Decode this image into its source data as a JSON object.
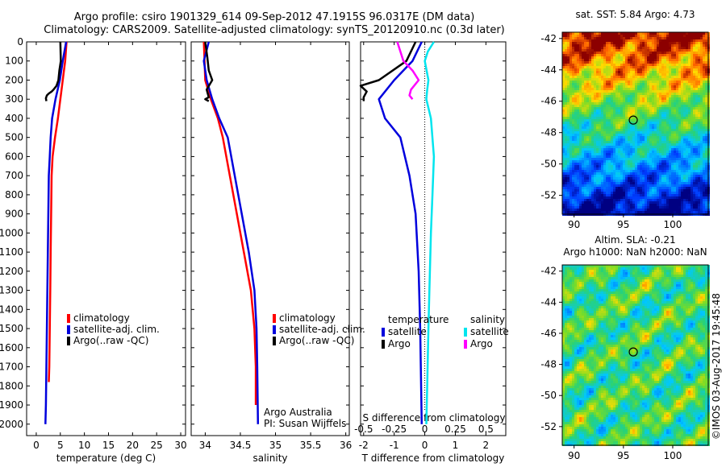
{
  "header": {
    "line1": "Argo profile: csiro 1901329_614 09-Sep-2012 47.1915S 96.0317E (DM data)",
    "line2": "Climatology: CARS2009. Satellite-adjusted climatology: synTS_20120910.nc (0.3d later)"
  },
  "footer": {
    "text": "©IMOS 03-Aug-2017 19:45:48"
  },
  "colors": {
    "climatology": "#ff0000",
    "satellite": "#0000dd",
    "argo": "#000000",
    "sal_sat": "#00e5ee",
    "sal_argo": "#ff00ff"
  },
  "chart_data": [
    {
      "type": "line",
      "ylabel": "",
      "yticks": [
        0,
        100,
        200,
        300,
        400,
        500,
        600,
        700,
        800,
        900,
        1000,
        1100,
        1200,
        1300,
        1400,
        1500,
        1600,
        1700,
        1800,
        1900,
        2000
      ],
      "xlabel": "temperature (deg C)",
      "xticks": [
        0,
        5,
        10,
        15,
        20,
        25,
        30
      ],
      "xlim": [
        -2,
        31
      ],
      "ylim": [
        2060,
        0
      ],
      "legend": [
        "climatology",
        "satellite-adj. clim.",
        "Argo(..raw -QC)"
      ],
      "series": [
        {
          "name": "climatology",
          "color": "#ff0000",
          "x": [
            6.3,
            6.0,
            5.5,
            5.0,
            4.5,
            3.9,
            3.4,
            3.2,
            3.1,
            3.0,
            2.9,
            2.8,
            2.7,
            2.6
          ],
          "y": [
            0,
            100,
            200,
            300,
            400,
            500,
            600,
            700,
            900,
            1100,
            1300,
            1500,
            1700,
            1780
          ]
        },
        {
          "name": "satellite-adj. clim.",
          "color": "#0000dd",
          "x": [
            6.2,
            5.5,
            4.9,
            4.0,
            3.3,
            3.0,
            2.8,
            2.6,
            2.5,
            2.4,
            2.3,
            2.2,
            2.1,
            2.0,
            1.9
          ],
          "y": [
            0,
            100,
            200,
            300,
            400,
            500,
            600,
            700,
            900,
            1100,
            1300,
            1500,
            1700,
            1900,
            2000
          ]
        },
        {
          "name": "Argo(..raw -QC)",
          "color": "#000000",
          "x": [
            5.0,
            5.1,
            4.8,
            4.6,
            4.2,
            3.6,
            3.2,
            2.6,
            2.2,
            2.0,
            2.1
          ],
          "y": [
            0,
            100,
            150,
            200,
            230,
            250,
            260,
            270,
            280,
            295,
            310
          ]
        }
      ],
      "annotations": []
    },
    {
      "type": "line",
      "xlabel": "salinity",
      "xticks": [
        34,
        34.5,
        35,
        35.5,
        36
      ],
      "xlim": [
        33.8,
        36.05
      ],
      "ylim": [
        2060,
        0
      ],
      "legend": [
        "climatology",
        "satellite-adj. clim.",
        "Argo(..raw -QC)"
      ],
      "series": [
        {
          "name": "climatology",
          "color": "#ff0000",
          "x": [
            33.98,
            33.99,
            34.0,
            34.08,
            34.18,
            34.25,
            34.35,
            34.45,
            34.55,
            34.65,
            34.7,
            34.72,
            34.72
          ],
          "y": [
            0,
            100,
            200,
            300,
            400,
            500,
            700,
            900,
            1100,
            1300,
            1500,
            1700,
            1900
          ]
        },
        {
          "name": "satellite-adj. clim.",
          "color": "#0000dd",
          "x": [
            34.05,
            33.98,
            34.02,
            34.1,
            34.2,
            34.32,
            34.42,
            34.52,
            34.62,
            34.7,
            34.73,
            34.74,
            34.75
          ],
          "y": [
            0,
            100,
            200,
            300,
            400,
            500,
            700,
            900,
            1100,
            1300,
            1500,
            1700,
            2000
          ]
        },
        {
          "name": "Argo(..raw -QC)",
          "color": "#000000",
          "x": [
            34.0,
            34.03,
            34.05,
            34.1,
            34.02,
            34.05,
            34.0,
            34.05
          ],
          "y": [
            0,
            80,
            150,
            200,
            250,
            290,
            300,
            310
          ]
        }
      ],
      "annotations": [
        "Argo Australia",
        "PI: Susan Wijffels"
      ]
    },
    {
      "type": "line",
      "xlabel": "T difference from climatology",
      "xlabel_top": "S difference from climatology",
      "xticks": [
        -2,
        -1,
        0,
        1,
        2
      ],
      "xticks_top": [
        "-0.5",
        "-0.25",
        "0",
        "0.25",
        "0.5"
      ],
      "xlim": [
        -2.1,
        2.65
      ],
      "ylim": [
        2060,
        0
      ],
      "legend_titles": [
        "temperature",
        "salinity"
      ],
      "legend": [
        "satellite",
        "Argo",
        "satellite",
        "Argo"
      ],
      "series": [
        {
          "name": "temperature satellite",
          "color": "#0000dd",
          "x": [
            -0.1,
            -0.4,
            -1.0,
            -1.5,
            -1.3,
            -0.8,
            -0.5,
            -0.3,
            -0.2,
            -0.15,
            -0.1
          ],
          "y": [
            0,
            100,
            200,
            300,
            400,
            500,
            700,
            900,
            1200,
            1500,
            2000
          ]
        },
        {
          "name": "temperature Argo",
          "color": "#000000",
          "x": [
            -0.3,
            -0.6,
            -1.5,
            -2.1,
            -1.9,
            -2.0,
            -2.0
          ],
          "y": [
            0,
            100,
            200,
            230,
            260,
            290,
            310
          ]
        },
        {
          "name": "salinity satellite",
          "color": "#00e5ee",
          "x": [
            0.3,
            0.1,
            0.0,
            0.12,
            0.08,
            0.05,
            0.2,
            0.3,
            0.25,
            0.2,
            0.15,
            0.12,
            0.08,
            0.05
          ],
          "y": [
            0,
            50,
            100,
            200,
            250,
            300,
            400,
            600,
            800,
            1000,
            1300,
            1500,
            1800,
            2000
          ]
        },
        {
          "name": "salinity Argo",
          "color": "#ff00ff",
          "x": [
            -0.9,
            -0.7,
            -0.4,
            -0.2,
            -0.45,
            -0.5,
            -0.4
          ],
          "y": [
            0,
            100,
            150,
            200,
            250,
            280,
            300
          ]
        }
      ],
      "annotations": []
    }
  ],
  "maps": [
    {
      "title": "sat. SST: 5.84 Argo: 4.73",
      "type": "heatmap",
      "xticks": [
        90,
        95,
        100
      ],
      "yticks": [
        -42,
        -44,
        -46,
        -48,
        -50,
        -52
      ],
      "xlim": [
        88.8,
        103.6
      ],
      "ylim": [
        -41.6,
        -53.2
      ],
      "marker": [
        96.0,
        -47.2
      ]
    },
    {
      "title": "Altim. SLA: -0.21",
      "subtitle": "Argo h1000: NaN h2000: NaN",
      "type": "heatmap",
      "xticks": [
        90,
        95,
        100
      ],
      "yticks": [
        -42,
        -44,
        -46,
        -48,
        -50,
        -52
      ],
      "xlim": [
        88.8,
        103.6
      ],
      "ylim": [
        -41.6,
        -53.2
      ],
      "marker": [
        96.0,
        -47.2
      ]
    }
  ],
  "y_axis_ticks_label": [
    "0",
    "100",
    "200",
    "300",
    "400",
    "500",
    "600",
    "700",
    "800",
    "900",
    "1000",
    "1100",
    "1200",
    "1300",
    "1400",
    "1500",
    "1600",
    "1700",
    "1800",
    "1900",
    "2000"
  ]
}
